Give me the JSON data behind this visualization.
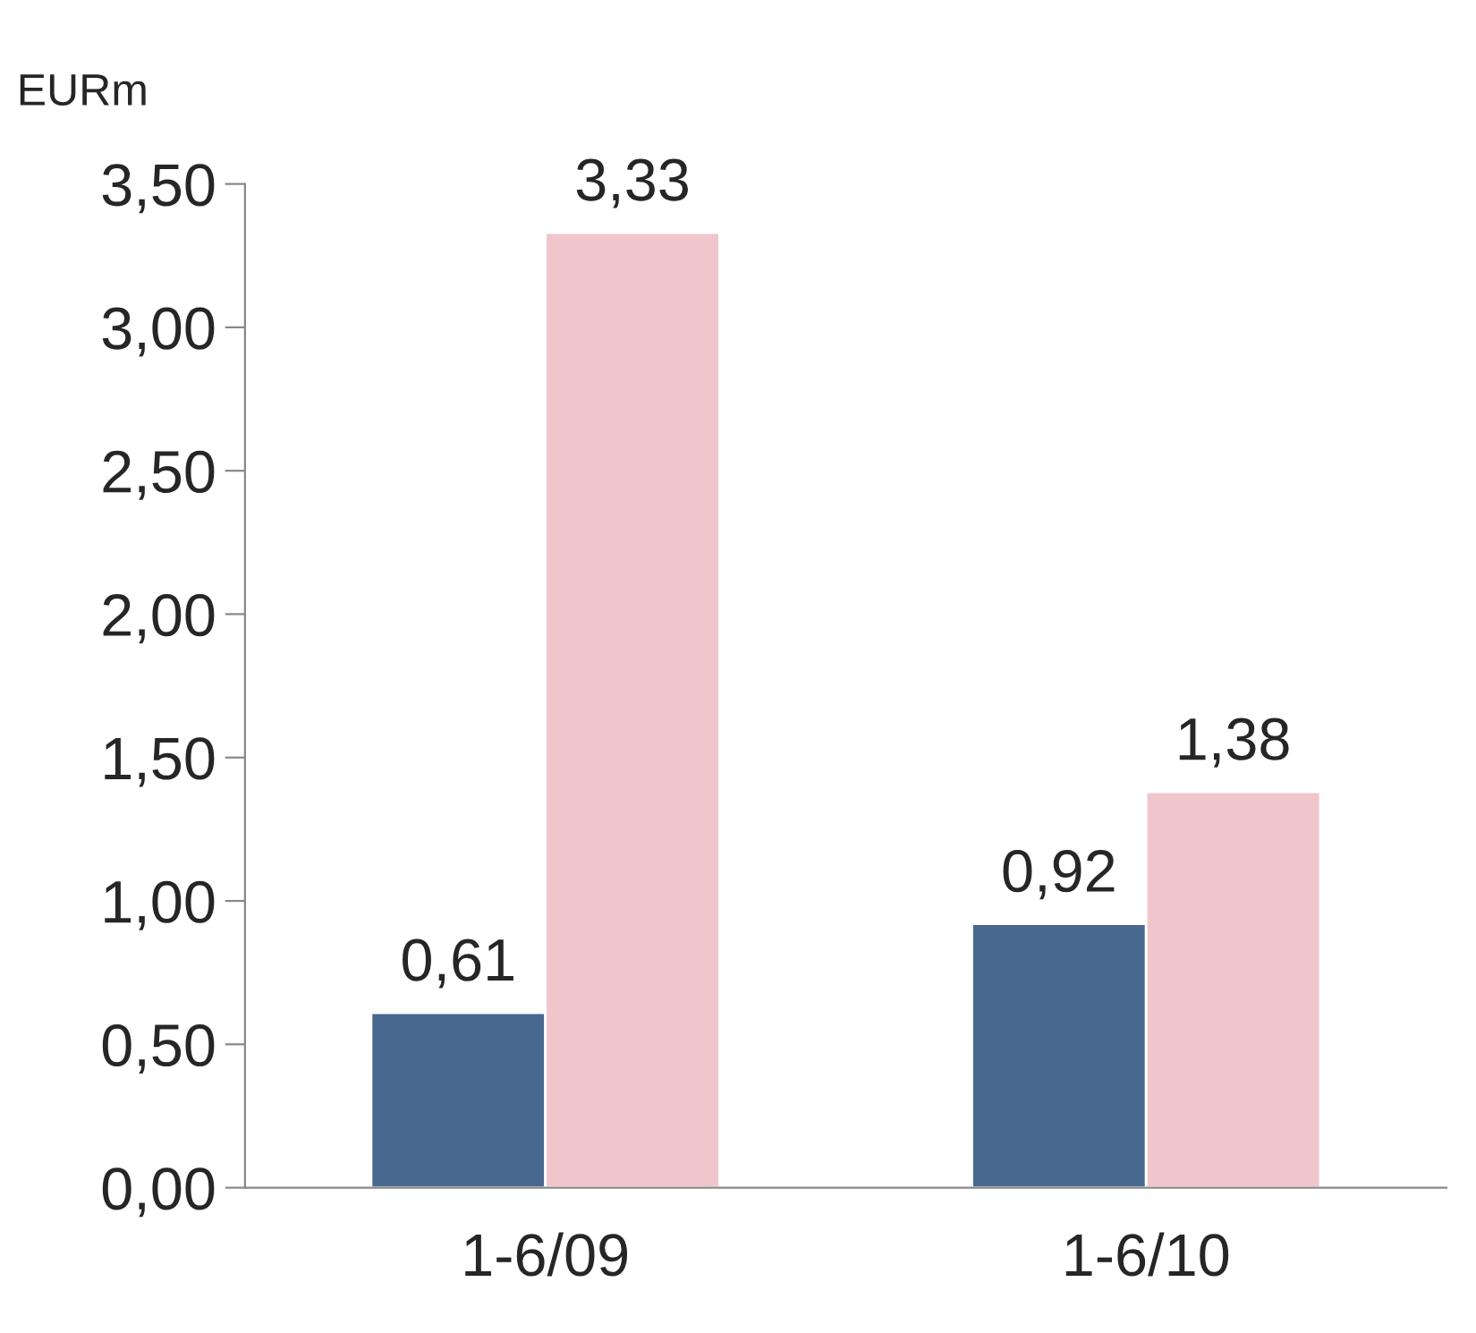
{
  "chart_data": {
    "type": "bar",
    "ylabel": "EURm",
    "categories": [
      "1-6/09",
      "1-6/10"
    ],
    "series": [
      {
        "color": "#48688f",
        "values": [
          0.61,
          0.92
        ],
        "value_labels": [
          "0,61",
          "0,92"
        ]
      },
      {
        "color": "#f0c6cc",
        "values": [
          3.33,
          1.38
        ],
        "value_labels": [
          "3,33",
          "1,38"
        ]
      }
    ],
    "ylim": [
      0,
      3.5
    ],
    "yticks": [
      {
        "value": 0,
        "label": "0,00"
      },
      {
        "value": 0.5,
        "label": "0,50"
      },
      {
        "value": 1,
        "label": "1,00"
      },
      {
        "value": 1.5,
        "label": "1,50"
      },
      {
        "value": 2,
        "label": "2,00"
      },
      {
        "value": 2.5,
        "label": "2,50"
      },
      {
        "value": 3,
        "label": "3,00"
      },
      {
        "value": 3.5,
        "label": "3,50"
      }
    ],
    "grid": false,
    "legend": false
  }
}
